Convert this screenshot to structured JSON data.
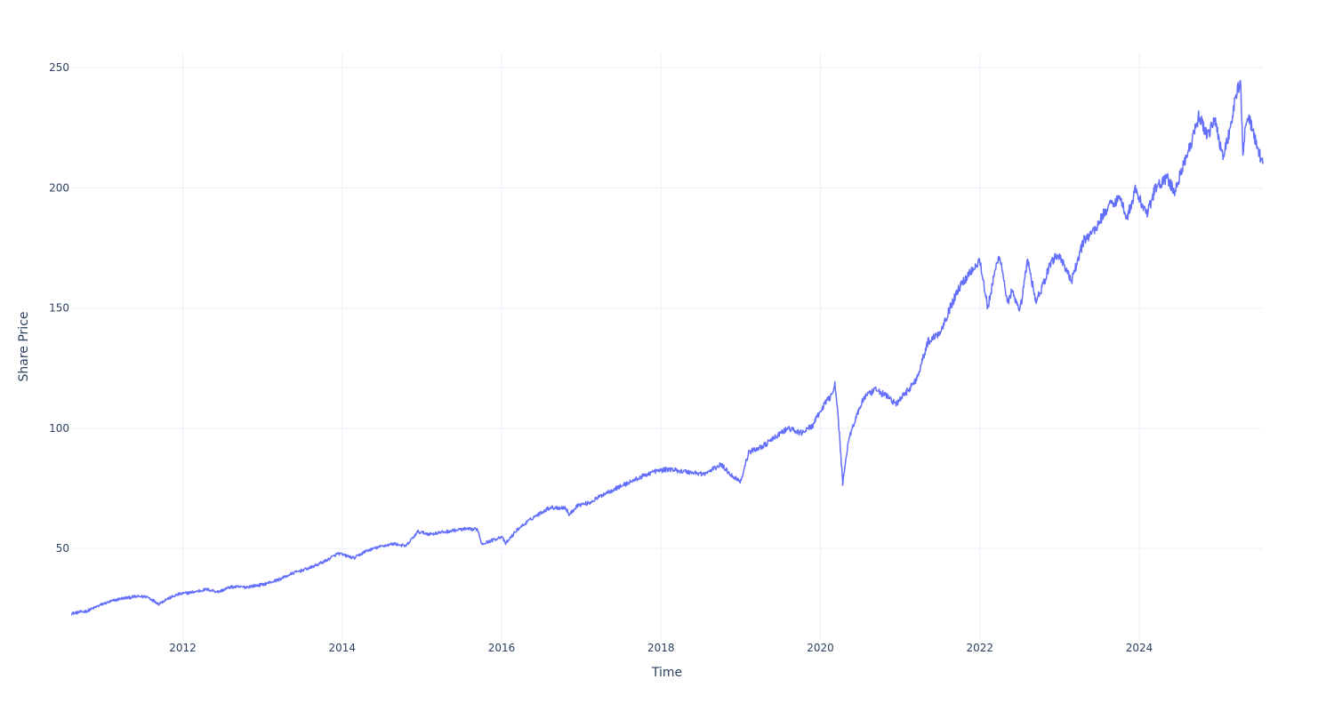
{
  "chart_data": {
    "type": "line",
    "title": "",
    "xlabel": "Time",
    "ylabel": "Share Price",
    "x_ticks": [
      "2012",
      "2014",
      "2016",
      "2018",
      "2020",
      "2022",
      "2024"
    ],
    "y_ticks": [
      50,
      100,
      150,
      200,
      250
    ],
    "xlim": [
      2010.6,
      2025.55
    ],
    "ylim": [
      12,
      256
    ],
    "grid": true,
    "legend": "none",
    "series": [
      {
        "color": "#636efa",
        "x": [
          2010.6,
          2010.8,
          2011.0,
          2011.2,
          2011.4,
          2011.55,
          2011.7,
          2011.8,
          2011.95,
          2012.15,
          2012.3,
          2012.45,
          2012.6,
          2012.8,
          2013.0,
          2013.2,
          2013.4,
          2013.6,
          2013.8,
          2013.95,
          2014.15,
          2014.3,
          2014.5,
          2014.65,
          2014.8,
          2014.95,
          2015.1,
          2015.3,
          2015.5,
          2015.7,
          2015.75,
          2015.85,
          2016.0,
          2016.05,
          2016.2,
          2016.4,
          2016.6,
          2016.8,
          2016.85,
          2016.95,
          2017.1,
          2017.3,
          2017.5,
          2017.7,
          2017.9,
          2018.1,
          2018.3,
          2018.55,
          2018.75,
          2018.9,
          2019.0,
          2019.1,
          2019.3,
          2019.5,
          2019.6,
          2019.75,
          2019.9,
          2020.05,
          2020.12,
          2020.18,
          2020.22,
          2020.28,
          2020.35,
          2020.45,
          2020.55,
          2020.7,
          2020.85,
          2020.95,
          2021.1,
          2021.2,
          2021.35,
          2021.5,
          2021.65,
          2021.75,
          2021.9,
          2022.0,
          2022.1,
          2022.2,
          2022.25,
          2022.35,
          2022.4,
          2022.5,
          2022.6,
          2022.7,
          2022.8,
          2022.9,
          2023.0,
          2023.15,
          2023.3,
          2023.45,
          2023.6,
          2023.75,
          2023.85,
          2023.95,
          2024.1,
          2024.2,
          2024.35,
          2024.45,
          2024.55,
          2024.65,
          2024.75,
          2024.85,
          2024.95,
          2025.05,
          2025.15,
          2025.22,
          2025.27,
          2025.3,
          2025.35,
          2025.42,
          2025.48,
          2025.55
        ],
        "y": [
          23,
          24,
          27,
          29,
          30,
          30,
          27,
          29,
          31,
          32,
          33,
          32,
          34,
          34,
          35,
          37,
          40,
          42,
          45,
          48,
          46,
          49,
          51,
          52,
          51,
          57,
          56,
          57,
          58,
          58,
          52,
          53,
          55,
          52,
          58,
          63,
          67,
          67,
          64,
          68,
          69,
          73,
          76,
          79,
          82,
          83,
          82,
          81,
          85,
          80,
          78,
          90,
          93,
          98,
          100,
          98,
          101,
          110,
          113,
          118,
          106,
          77,
          95,
          105,
          113,
          116,
          113,
          110,
          116,
          120,
          136,
          140,
          152,
          159,
          166,
          170,
          150,
          167,
          172,
          152,
          157,
          148,
          170,
          153,
          160,
          170,
          172,
          161,
          178,
          183,
          192,
          196,
          188,
          199,
          189,
          200,
          204,
          198,
          210,
          218,
          230,
          222,
          228,
          213,
          226,
          240,
          243,
          215,
          230,
          225,
          216,
          210
        ]
      }
    ]
  }
}
